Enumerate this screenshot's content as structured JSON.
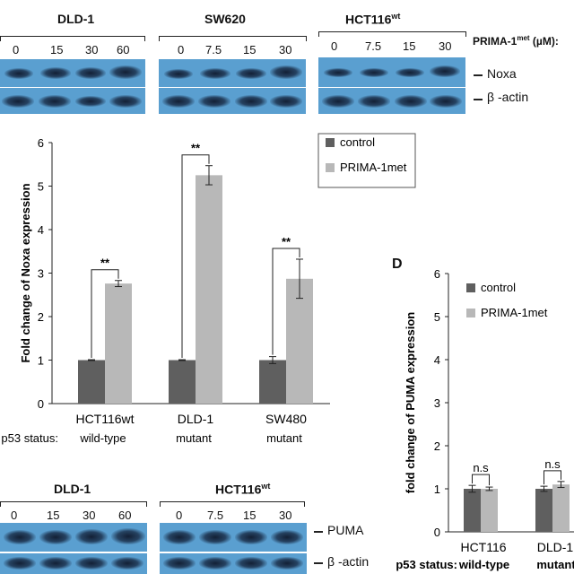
{
  "top_blots": {
    "panels": [
      {
        "cell": "DLD-1",
        "doses": [
          "0",
          "15",
          "30",
          "60"
        ]
      },
      {
        "cell": "SW620",
        "doses": [
          "0",
          "7.5",
          "15",
          "30"
        ]
      },
      {
        "cell": "HCT116",
        "cell_sup": "wt",
        "doses": [
          "0",
          "7.5",
          "15",
          "30"
        ]
      }
    ],
    "dose_label": "PRIMA-1",
    "dose_label_sup": "met",
    "dose_unit": "(µM):",
    "markers": [
      "Noxa",
      "β -actin"
    ]
  },
  "bottom_blots": {
    "panels": [
      {
        "cell": "DLD-1",
        "doses": [
          "0",
          "15",
          "30",
          "60"
        ]
      },
      {
        "cell": "HCT116",
        "cell_sup": "wt",
        "doses": [
          "0",
          "7.5",
          "15",
          "30"
        ]
      }
    ],
    "markers": [
      "PUMA",
      "β -actin"
    ]
  },
  "panel_d_letter": "D",
  "chart_data": [
    {
      "type": "bar",
      "ylabel": "Fold change of Noxa expression",
      "ylim": [
        0,
        6
      ],
      "yticks": [
        "0",
        "1",
        "2",
        "3",
        "4",
        "5",
        "6"
      ],
      "categories": [
        "HCT116wt",
        "DLD-1",
        "SW480"
      ],
      "p53_label": "p53 status:",
      "p53_status": [
        "wild-type",
        "mutant",
        "mutant"
      ],
      "series": [
        {
          "name": "control",
          "color": "#5f5f5f",
          "values": [
            1.0,
            1.0,
            1.0
          ],
          "errors": [
            0.01,
            0.01,
            0.08
          ]
        },
        {
          "name": "PRIMA-1met",
          "color": "#b8b8b8",
          "values": [
            2.76,
            5.25,
            2.87
          ],
          "errors": [
            0.07,
            0.22,
            0.45
          ]
        }
      ],
      "significance": [
        "**",
        "**",
        "**"
      ],
      "legend_position": "top-right"
    },
    {
      "type": "bar",
      "ylabel": "fold change of PUMA expression",
      "ylim": [
        0,
        6
      ],
      "yticks": [
        "0",
        "1",
        "2",
        "3",
        "4",
        "5",
        "6"
      ],
      "categories": [
        "HCT116",
        "DLD-1"
      ],
      "p53_label": "p53 status:",
      "p53_status": [
        "wild-type",
        "mutant"
      ],
      "series": [
        {
          "name": "control",
          "color": "#5f5f5f",
          "values": [
            1.0,
            1.0
          ],
          "errors": [
            0.08,
            0.06
          ]
        },
        {
          "name": "PRIMA-1met",
          "color": "#b8b8b8",
          "values": [
            1.0,
            1.1
          ],
          "errors": [
            0.04,
            0.07
          ]
        }
      ],
      "significance": [
        "n.s",
        "n.s"
      ],
      "legend_position": "top-left"
    }
  ]
}
